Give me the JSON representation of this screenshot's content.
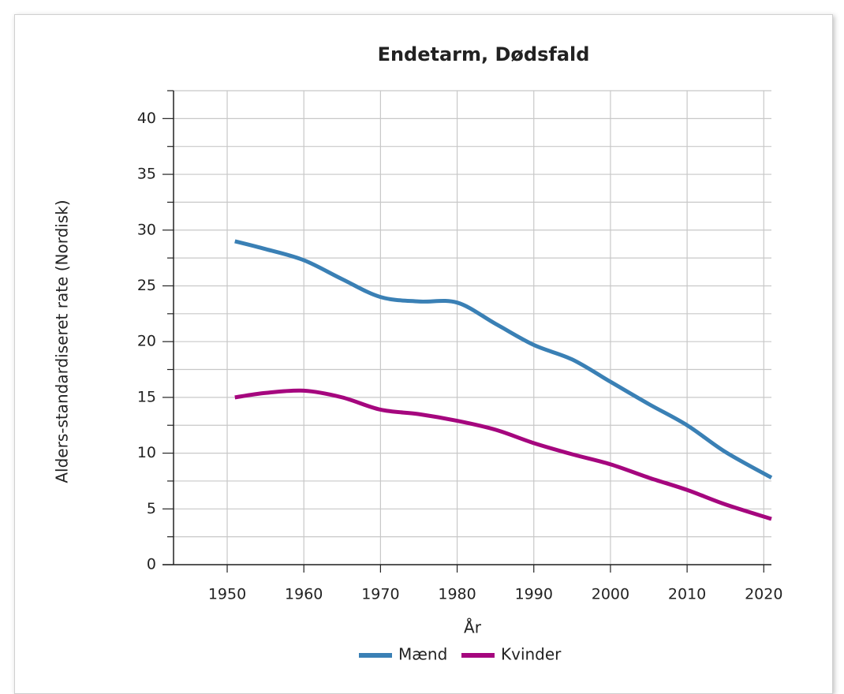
{
  "chart_data": {
    "type": "line",
    "title": "Endetarm, Dødsfald",
    "x_label": "År",
    "y_label": "Alders-standardiseret rate (Nordisk)",
    "x": [
      1951,
      1955,
      1960,
      1965,
      1970,
      1975,
      1980,
      1985,
      1990,
      1995,
      2000,
      2005,
      2010,
      2015,
      2021
    ],
    "series": [
      {
        "name": "Mænd",
        "color": "#3a80b5",
        "values": [
          29.0,
          28.3,
          27.3,
          25.6,
          24.0,
          23.6,
          23.5,
          21.6,
          19.7,
          18.4,
          16.4,
          14.4,
          12.5,
          10.1,
          7.8
        ]
      },
      {
        "name": "Kvinder",
        "color": "#a5067e",
        "values": [
          15.0,
          15.4,
          15.6,
          15.0,
          13.9,
          13.5,
          12.9,
          12.1,
          10.9,
          9.9,
          9.0,
          7.8,
          6.7,
          5.4,
          4.1
        ]
      }
    ],
    "xlim": [
      1943,
      2021
    ],
    "xticks": [
      1950,
      1960,
      1970,
      1980,
      1990,
      2000,
      2010,
      2020
    ],
    "ylim": [
      0,
      42.5
    ],
    "yticks": [
      0,
      5,
      10,
      15,
      20,
      25,
      30,
      35,
      40
    ],
    "yminorticks": [
      2.5,
      7.5,
      12.5,
      17.5,
      22.5,
      27.5,
      32.5,
      37.5,
      42.5
    ],
    "grid": true,
    "legend": "bottom"
  }
}
